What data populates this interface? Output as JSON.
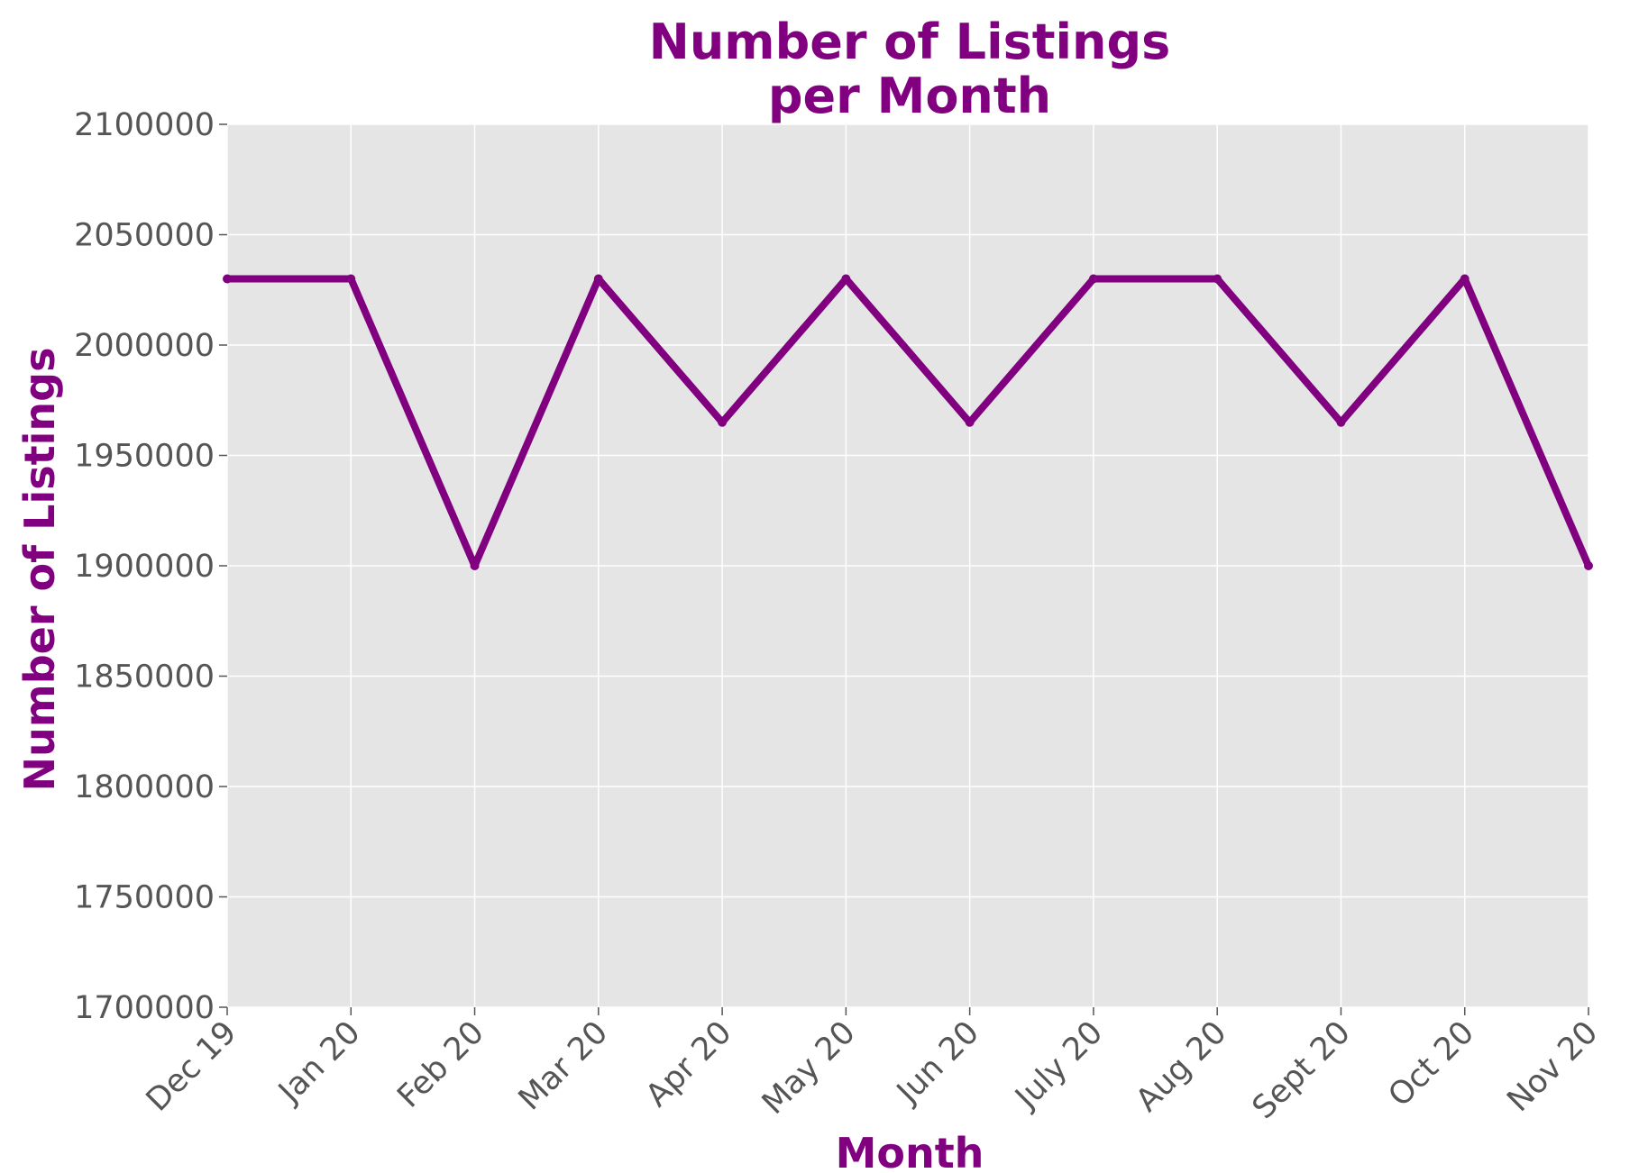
{
  "chart_data": {
    "type": "line",
    "title_lines": [
      "Number of Listings",
      "per Month"
    ],
    "xlabel": "Month",
    "ylabel": "Number of Listings",
    "categories": [
      "Dec 19",
      "Jan 20",
      "Feb 20",
      "Mar 20",
      "Apr 20",
      "May 20",
      "Jun 20",
      "July 20",
      "Aug 20",
      "Sept 20",
      "Oct 20",
      "Nov 20"
    ],
    "series": [
      {
        "values": [
          2030000,
          2030000,
          1900000,
          2030000,
          1965000,
          2030000,
          1965000,
          2030000,
          2030000,
          1965000,
          2030000,
          1900000
        ]
      }
    ],
    "ylim": [
      1700000,
      2100000
    ],
    "yticks": [
      1700000,
      1750000,
      1800000,
      1850000,
      1900000,
      1950000,
      2000000,
      2050000,
      2100000
    ],
    "grid": true,
    "colors": {
      "line": "#800080",
      "plot_background": "#e5e5e5",
      "grid": "#ffffff",
      "title": "#800080",
      "tick_text": "#555555"
    }
  }
}
